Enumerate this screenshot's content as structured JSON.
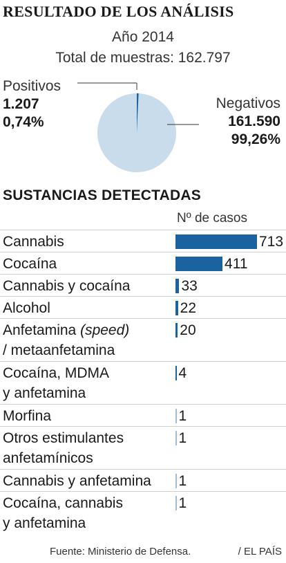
{
  "header": {
    "title": "RESULTADO DE LOS ANÁLISIS",
    "year": "Año 2014",
    "total": "Total de muestras: 162.797"
  },
  "pie": {
    "positive": {
      "label": "Positivos",
      "count": "1.207",
      "pct": "0,74%",
      "value": 1207,
      "color": "#1b63a0"
    },
    "negative": {
      "label": "Negativos",
      "count": "161.590",
      "pct": "99,26%",
      "value": 161590,
      "color": "#c9dcec"
    }
  },
  "section": {
    "title": "SUSTANCIAS DETECTADAS",
    "column_header": "Nº de casos"
  },
  "chart_data": [
    {
      "type": "pie",
      "title": "RESULTADO DE LOS ANÁLISIS",
      "subtitle": "Año 2014 — Total de muestras: 162.797",
      "categories": [
        "Positivos",
        "Negativos"
      ],
      "values": [
        1207,
        161590
      ],
      "percent": [
        0.74,
        99.26
      ]
    },
    {
      "type": "bar",
      "title": "SUSTANCIAS DETECTADAS",
      "ylabel": "Nº de casos",
      "categories": [
        "Cannabis",
        "Cocaína",
        "Cannabis y cocaína",
        "Alcohol",
        "Anfetamina (speed) / metaanfetamina",
        "Cocaína, MDMA y anfetamina",
        "Morfina",
        "Otros estimulantes anfetamínicos",
        "Cannabis y anfetamina",
        "Cocaína, cannabis y anfetamina"
      ],
      "values": [
        713,
        411,
        33,
        22,
        20,
        4,
        1,
        1,
        1,
        1
      ],
      "bar_color": "#1b63a0",
      "xlim": [
        0,
        713
      ]
    }
  ],
  "rows": [
    {
      "label_lines": [
        "Cannabis"
      ],
      "value": 713
    },
    {
      "label_lines": [
        "Cocaína"
      ],
      "value": 411
    },
    {
      "label_lines": [
        "Cannabis y cocaína"
      ],
      "value": 33
    },
    {
      "label_lines": [
        "Alcohol"
      ],
      "value": 22
    },
    {
      "label_lines": [
        "Anfetamina (speed)",
        "/ metaanfetamina"
      ],
      "value": 20,
      "italic_word": "(speed)"
    },
    {
      "label_lines": [
        "Cocaína, MDMA",
        "y anfetamina"
      ],
      "value": 4
    },
    {
      "label_lines": [
        "Morfina"
      ],
      "value": 1
    },
    {
      "label_lines": [
        "Otros estimulantes",
        "anfetamínicos"
      ],
      "value": 1
    },
    {
      "label_lines": [
        "Cannabis y anfetamina"
      ],
      "value": 1
    },
    {
      "label_lines": [
        "Cocaína, cannabis",
        "y anfetamina"
      ],
      "value": 1
    }
  ],
  "footer": {
    "source": "Fuente: Ministerio de Defensa.",
    "brand": "/ EL PAÍS"
  }
}
